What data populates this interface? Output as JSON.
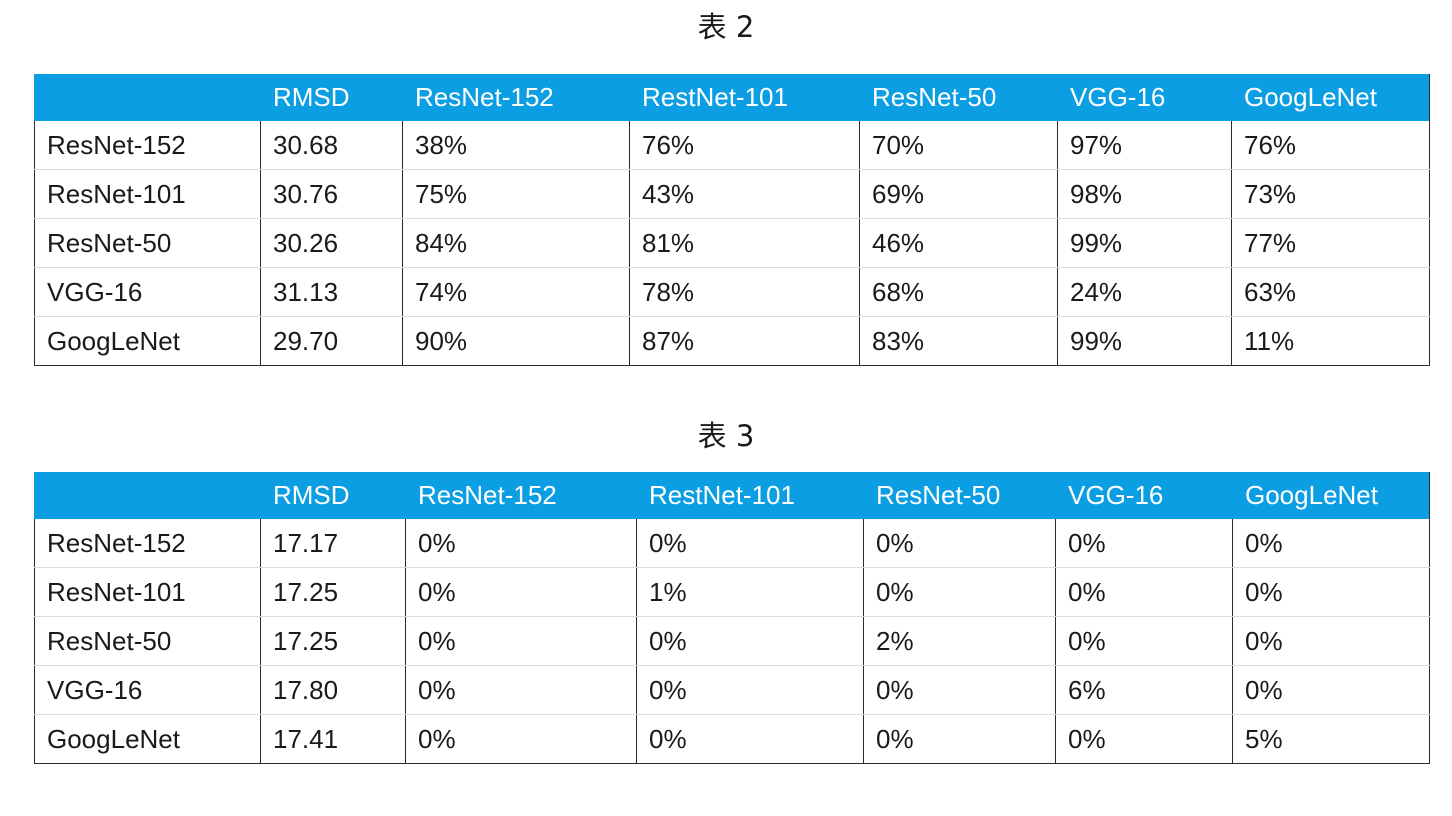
{
  "table2": {
    "caption": "表 2",
    "columns": [
      "",
      "RMSD",
      "ResNet-152",
      "RestNet-101",
      "ResNet-50",
      "VGG-16",
      "GoogLeNet"
    ],
    "rows": [
      [
        "ResNet-152",
        "30.68",
        "38%",
        "76%",
        "70%",
        "97%",
        "76%"
      ],
      [
        "ResNet-101",
        "30.76",
        "75%",
        "43%",
        "69%",
        "98%",
        "73%"
      ],
      [
        "ResNet-50",
        "30.26",
        "84%",
        "81%",
        "46%",
        "99%",
        "77%"
      ],
      [
        "VGG-16",
        "31.13",
        "74%",
        "78%",
        "68%",
        "24%",
        "63%"
      ],
      [
        "GoogLeNet",
        "29.70",
        "90%",
        "87%",
        "83%",
        "99%",
        "11%"
      ]
    ]
  },
  "table3": {
    "caption": "表 3",
    "columns": [
      "",
      "RMSD",
      "ResNet-152",
      "RestNet-101",
      "ResNet-50",
      "VGG-16",
      "GoogLeNet"
    ],
    "rows": [
      [
        "ResNet-152",
        "17.17",
        "0%",
        "0%",
        "0%",
        "0%",
        "0%"
      ],
      [
        "ResNet-101",
        "17.25",
        "0%",
        "1%",
        "0%",
        "0%",
        "0%"
      ],
      [
        "ResNet-50",
        "17.25",
        "0%",
        "0%",
        "2%",
        "0%",
        "0%"
      ],
      [
        "VGG-16",
        "17.80",
        "0%",
        "0%",
        "0%",
        "6%",
        "0%"
      ],
      [
        "GoogLeNet",
        "17.41",
        "0%",
        "0%",
        "0%",
        "0%",
        "5%"
      ]
    ]
  }
}
